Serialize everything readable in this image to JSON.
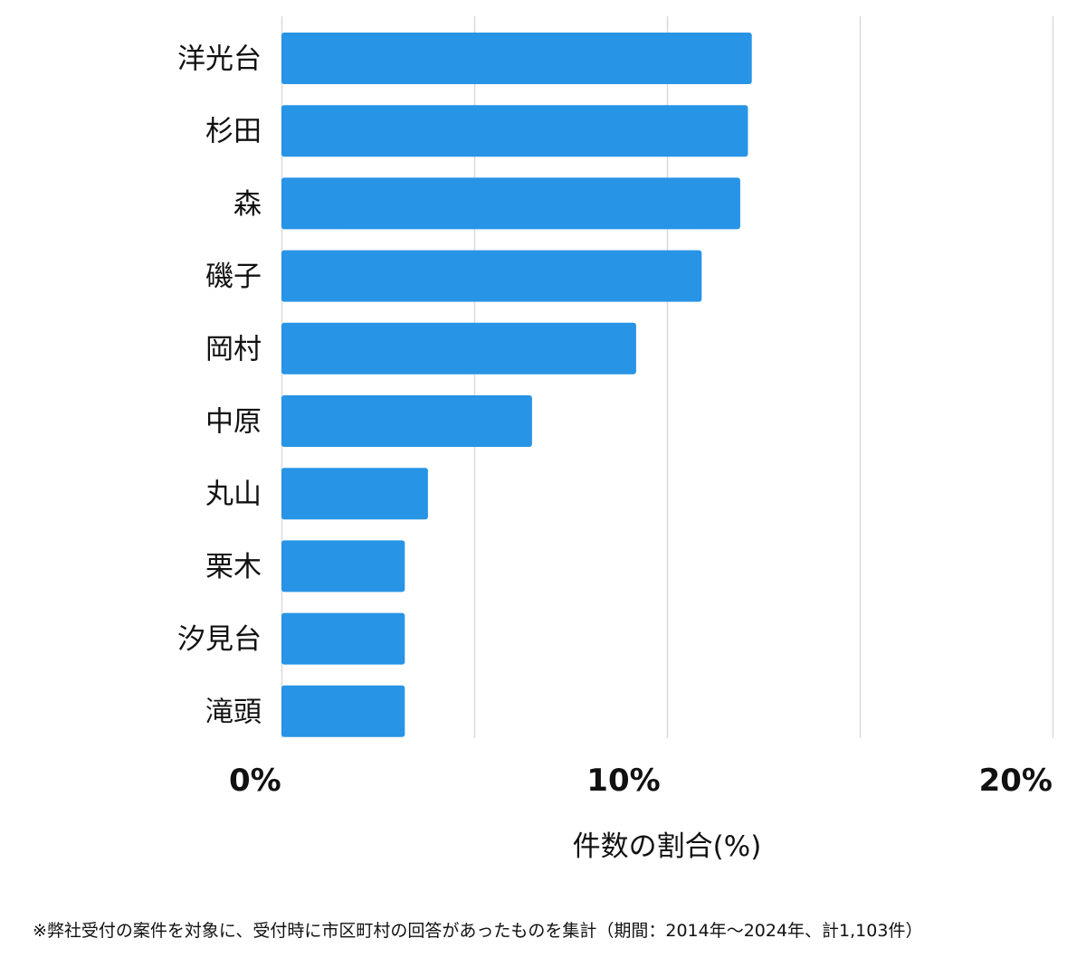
{
  "chart_data": {
    "type": "bar",
    "orientation": "horizontal",
    "categories": [
      "洋光台",
      "杉田",
      "森",
      "磯子",
      "岡村",
      "中原",
      "丸山",
      "栗木",
      "汐見台",
      "滝頭"
    ],
    "values": [
      12.2,
      12.1,
      11.9,
      10.9,
      9.2,
      6.5,
      3.8,
      3.2,
      3.2,
      3.2
    ],
    "xlim": [
      0,
      20
    ],
    "x_ticks": [
      "0%",
      "10%",
      "20%"
    ],
    "xlabel": "件数の割合(%)",
    "grid": true,
    "color": "#2794e6"
  },
  "footnote": "※弊社受付の案件を対象に、受付時に市区町村の回答があったものを集計（期間：2014年～2024年、計1,103件）"
}
